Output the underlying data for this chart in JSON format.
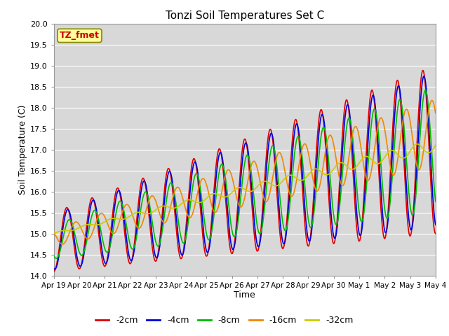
{
  "title": "Tonzi Soil Temperatures Set C",
  "xlabel": "Time",
  "ylabel": "Soil Temperature (C)",
  "ylim": [
    14.0,
    20.0
  ],
  "yticks": [
    14.0,
    14.5,
    15.0,
    15.5,
    16.0,
    16.5,
    17.0,
    17.5,
    18.0,
    18.5,
    19.0,
    19.5,
    20.0
  ],
  "xtick_labels": [
    "Apr 19",
    "Apr 20",
    "Apr 21",
    "Apr 22",
    "Apr 23",
    "Apr 24",
    "Apr 25",
    "Apr 26",
    "Apr 27",
    "Apr 28",
    "Apr 29",
    "Apr 30",
    "May 1",
    "May 2",
    "May 3",
    "May 4"
  ],
  "series": {
    "-2cm": {
      "color": "#dd0000",
      "lw": 1.2
    },
    "-4cm": {
      "color": "#0000dd",
      "lw": 1.2
    },
    "-8cm": {
      "color": "#00bb00",
      "lw": 1.2
    },
    "-16cm": {
      "color": "#ee8800",
      "lw": 1.2
    },
    "-32cm": {
      "color": "#cccc00",
      "lw": 1.2
    }
  },
  "annotation_text": "TZ_fmet",
  "annotation_color": "#cc0000",
  "annotation_bg": "#ffff99",
  "fig_bg": "#ffffff",
  "plot_bg": "#d8d8d8",
  "grid_color": "#ffffff",
  "n_days": 15,
  "samples_per_day": 96
}
